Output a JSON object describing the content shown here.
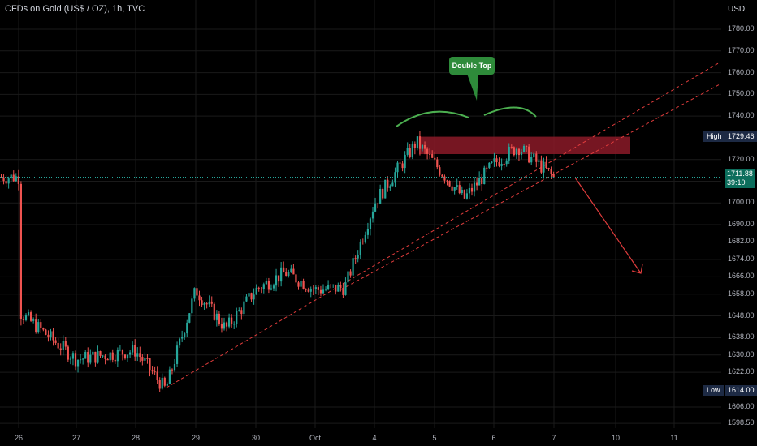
{
  "header": {
    "title": "CFDs on Gold (US$ / OZ), 1h, TVC",
    "currency": "USD"
  },
  "price_labels": {
    "high_label": "High",
    "high_value": "1729.46",
    "low_label": "Low",
    "low_value": "1614.00",
    "current_price": "1711.88",
    "countdown": "39:10"
  },
  "annotation": {
    "callout": "Double Top"
  },
  "colors": {
    "background": "#000000",
    "bull": "#26a69a",
    "bear": "#ef5350",
    "grid": "#1a1a1a",
    "trendline": "#e03c3c",
    "arc": "#4caf50",
    "resistance_zone": "#8b1a28",
    "current_line": "#26a69a"
  },
  "chart_data": {
    "type": "candlestick",
    "title": "CFDs on Gold (US$ / OZ), 1h, TVC",
    "y_unit": "USD",
    "ylim": [
      1595,
      1790
    ],
    "y_ticks": [
      "1780.00",
      "1770.00",
      "1760.00",
      "1750.00",
      "1740.00",
      "1720.00",
      "1710.00",
      "1700.00",
      "1690.00",
      "1682.00",
      "1674.00",
      "1666.00",
      "1658.00",
      "1648.00",
      "1638.00",
      "1630.00",
      "1622.00",
      "1606.00",
      "1598.50"
    ],
    "x_ticks": [
      "26",
      "27",
      "28",
      "29",
      "30",
      "Oct",
      "4",
      "5",
      "6",
      "7",
      "10",
      "11"
    ],
    "price_path": [
      {
        "x": "26",
        "price": 1650
      },
      {
        "x": "27",
        "price": 1628
      },
      {
        "x": "28",
        "price": 1632
      },
      {
        "x": "28.5",
        "price": 1614
      },
      {
        "x": "29",
        "price": 1660
      },
      {
        "x": "29.5",
        "price": 1642
      },
      {
        "x": "30",
        "price": 1660
      },
      {
        "x": "30.5",
        "price": 1668
      },
      {
        "x": "Oct",
        "price": 1660
      },
      {
        "x": "Oct.5",
        "price": 1661
      },
      {
        "x": "4",
        "price": 1700
      },
      {
        "x": "4.7",
        "price": 1728
      },
      {
        "x": "5.5",
        "price": 1702
      },
      {
        "x": "6",
        "price": 1718
      },
      {
        "x": "6.4",
        "price": 1726
      },
      {
        "x": "7",
        "price": 1711.88
      }
    ],
    "high": 1729.46,
    "low": 1614.0,
    "last_price": 1711.88,
    "annotations": [
      "Double Top"
    ],
    "grid": true,
    "legend": "none"
  }
}
